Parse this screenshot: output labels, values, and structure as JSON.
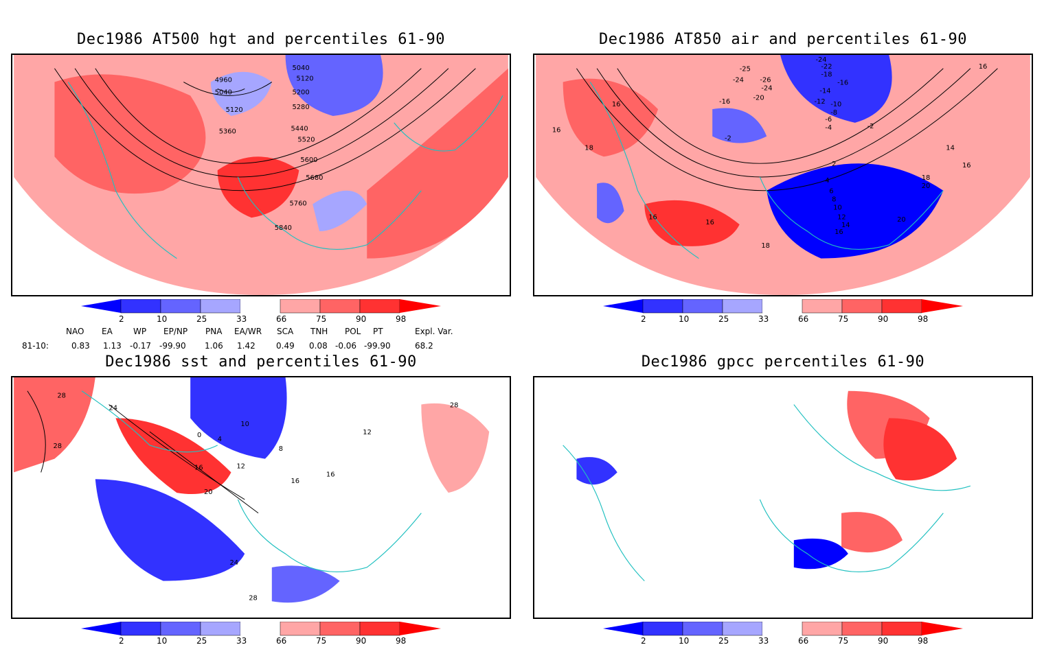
{
  "panels": [
    {
      "title": "Dec1986 AT500 hgt and percentiles 61-90",
      "contours": [
        "4960",
        "5040",
        "5120",
        "5040",
        "5120",
        "5200",
        "5280",
        "5360",
        "5440",
        "5520",
        "5600",
        "5680",
        "5760",
        "5840"
      ]
    },
    {
      "title": "Dec1986 AT850 air and percentiles 61-90",
      "contours": [
        "-24",
        "-22",
        "-18",
        "-16",
        "-14",
        "-12",
        "-10",
        "-8",
        "-6",
        "-4",
        "-2",
        "-2",
        "-16",
        "-20",
        "-24",
        "-26",
        "-24",
        "16",
        "16",
        "18",
        "16",
        "16",
        "2",
        "4",
        "6",
        "8",
        "10",
        "12",
        "14",
        "16",
        "18",
        "20",
        "20",
        "16",
        "18",
        "14",
        "16",
        "-25"
      ]
    },
    {
      "title": "Dec1986 sst and percentiles 61-90",
      "contours": [
        "28",
        "24",
        "28",
        "0",
        "4",
        "8",
        "10",
        "12",
        "16",
        "20",
        "24",
        "28",
        "16",
        "16",
        "28",
        "12"
      ]
    },
    {
      "title": "Dec1986 gpcc percentiles 61-90",
      "contours": []
    }
  ],
  "colorbar": {
    "ticks": [
      "2",
      "10",
      "25",
      "33",
      "66",
      "75",
      "90",
      "98"
    ],
    "colors": {
      "blue_dark": "#0000ff",
      "blue_mid": "#3232ff",
      "blue_light": "#6464ff",
      "blue_pale": "#a6a6ff",
      "white": "#ffffff",
      "red_pale": "#ffa6a6",
      "red_light": "#ff6464",
      "red_mid": "#ff3232",
      "red_dark": "#ff0000"
    }
  },
  "indices": {
    "headers": [
      "NAO",
      "EA",
      "WP",
      "EP/NP",
      "PNA",
      "EA/WR",
      "SCA",
      "TNH",
      "POL",
      "PT",
      "Expl. Var."
    ],
    "row_label": "81-10:",
    "values": [
      "0.83",
      "1.13",
      "-0.17",
      "-99.90",
      "1.06",
      "1.42",
      "0.49",
      "0.08",
      "-0.06",
      "-99.90",
      "68.2"
    ]
  },
  "style": {
    "coast_color": "#20c0c0"
  }
}
